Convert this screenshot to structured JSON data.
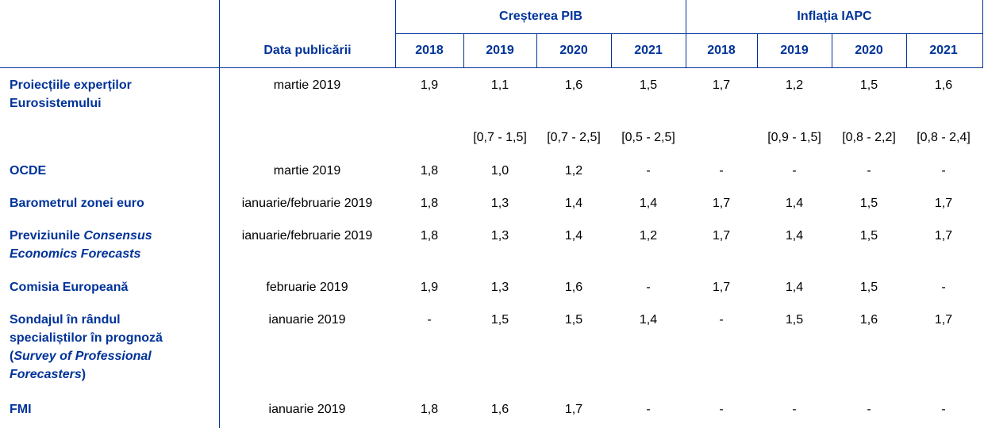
{
  "header": {
    "date_label": "Data publicării",
    "groups": [
      {
        "label": "Creșterea PIB",
        "years": [
          "2018",
          "2019",
          "2020",
          "2021"
        ]
      },
      {
        "label": "Inflația IAPC",
        "years": [
          "2018",
          "2019",
          "2020",
          "2021"
        ]
      }
    ]
  },
  "rows": [
    {
      "label_html": "Proiecțiile experților<br>Eurosistemului",
      "date": "martie 2019",
      "values": [
        "1,9",
        "1,1",
        "1,6",
        "1,5",
        "1,7",
        "1,2",
        "1,5",
        "1,6"
      ]
    },
    {
      "label_html": "",
      "date": "",
      "values": [
        "",
        "[0,7 - 1,5]",
        "[0,7 - 2,5]",
        "[0,5 - 2,5]",
        "",
        "[0,9 - 1,5]",
        "[0,8 - 2,2]",
        "[0,8 - 2,4]"
      ]
    },
    {
      "label_html": "OCDE",
      "date": "martie 2019",
      "values": [
        "1,8",
        "1,0",
        "1,2",
        "-",
        "-",
        "-",
        "-",
        "-"
      ]
    },
    {
      "label_html": "Barometrul zonei euro",
      "date": "ianuarie/februarie 2019",
      "values": [
        "1,8",
        "1,3",
        "1,4",
        "1,4",
        "1,7",
        "1,4",
        "1,5",
        "1,7"
      ]
    },
    {
      "label_html": "Previziunile <i>Consensus<br>Economics Forecasts</i>",
      "date": "ianuarie/februarie 2019",
      "values": [
        "1,8",
        "1,3",
        "1,4",
        "1,2",
        "1,7",
        "1,4",
        "1,5",
        "1,7"
      ]
    },
    {
      "label_html": "Comisia Europeană",
      "date": "februarie 2019",
      "values": [
        "1,9",
        "1,3",
        "1,6",
        "-",
        "1,7",
        "1,4",
        "1,5",
        "-"
      ]
    },
    {
      "label_html": "Sondajul în rândul<br>specialiștilor în prognoză<br>(<i>Survey of Professional<br>Forecasters</i>)",
      "date": "ianuarie 2019",
      "values": [
        "-",
        "1,5",
        "1,5",
        "1,4",
        "-",
        "1,5",
        "1,6",
        "1,7"
      ]
    },
    {
      "label_html": "FMI",
      "date": "ianuarie 2019",
      "values": [
        "1,8",
        "1,6",
        "1,7",
        "-",
        "-",
        "-",
        "-",
        "-"
      ]
    }
  ]
}
